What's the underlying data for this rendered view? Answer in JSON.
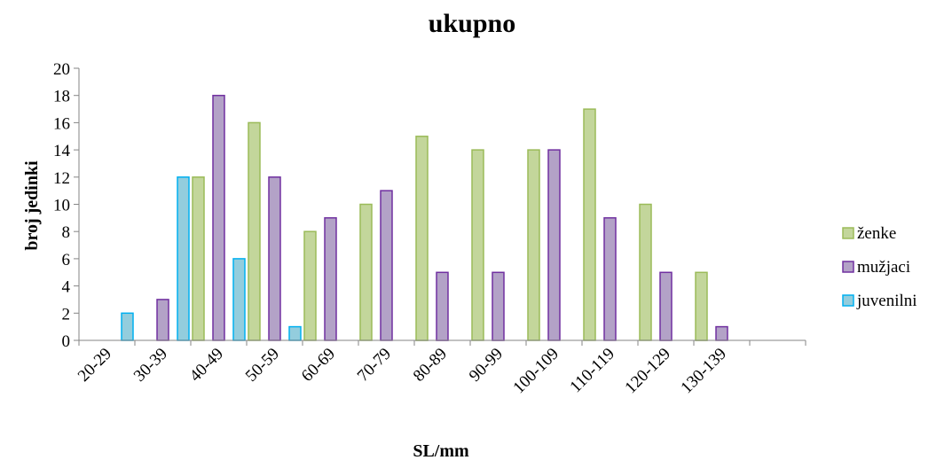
{
  "chart_data": {
    "type": "bar",
    "title": "ukupno",
    "xlabel": "SL/mm",
    "ylabel": "broj jedinki",
    "categories": [
      "20-29",
      "30-39",
      "40-49",
      "50-59",
      "60-69",
      "70-79",
      "80-89",
      "90-99",
      "100-109",
      "110-119",
      "120-129",
      "130-139"
    ],
    "extra_empty_category_slots": 1,
    "ylim": [
      0,
      20
    ],
    "yticks": [
      0,
      2,
      4,
      6,
      8,
      10,
      12,
      14,
      16,
      18,
      20
    ],
    "grid": false,
    "legend_position": "right",
    "series": [
      {
        "name": "ženke",
        "values": [
          0,
          0,
          12,
          16,
          8,
          10,
          15,
          14,
          14,
          17,
          10,
          5
        ],
        "fill": "#c3d69b",
        "stroke": "#9bbb59"
      },
      {
        "name": "mužjaci",
        "values": [
          0,
          3,
          18,
          12,
          9,
          11,
          5,
          5,
          14,
          9,
          5,
          1
        ],
        "fill": "#b3a2c7",
        "stroke": "#7030a0"
      },
      {
        "name": "juvenilni",
        "values": [
          2,
          12,
          6,
          1,
          0,
          0,
          0,
          0,
          0,
          0,
          0,
          0
        ],
        "fill": "#93cddd",
        "stroke": "#00b0f0"
      }
    ]
  }
}
